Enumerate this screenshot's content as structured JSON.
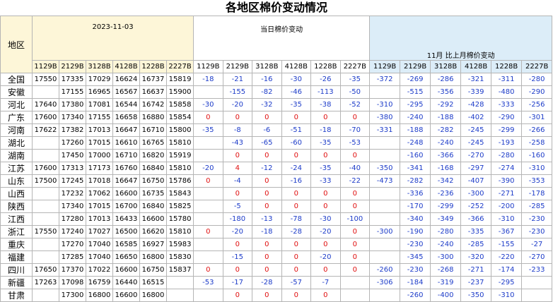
{
  "title": "各地区棉价变动情况",
  "header": {
    "region": "地区",
    "date": "2023-11-03",
    "daily": "当日棉价变动",
    "monthly": "11月 比上月棉价变动",
    "columns": [
      "1129B",
      "2129B",
      "3128B",
      "4128B",
      "1228B",
      "2227B"
    ]
  },
  "rows": [
    {
      "region": "全国",
      "prices": [
        17550,
        17335,
        17029,
        16624,
        16737,
        15819
      ],
      "daily": [
        -18,
        -21,
        -16,
        -30,
        -26,
        -35
      ],
      "monthly": [
        -372,
        -269,
        -286,
        -321,
        -311,
        -280
      ]
    },
    {
      "region": "安徽",
      "prices": [
        null,
        17155,
        16965,
        16567,
        16637,
        15900
      ],
      "daily": [
        null,
        -155,
        -82,
        -46,
        -113,
        -50
      ],
      "monthly": [
        null,
        -515,
        -356,
        -339,
        -480,
        -290
      ]
    },
    {
      "region": "河北",
      "prices": [
        17640,
        17380,
        17081,
        16544,
        16742,
        15858
      ],
      "daily": [
        -30,
        -20,
        -32,
        -35,
        -38,
        -52
      ],
      "monthly": [
        -310,
        -295,
        -292,
        -428,
        -333,
        -256
      ]
    },
    {
      "region": "广东",
      "prices": [
        17600,
        17340,
        17155,
        16658,
        16880,
        15854
      ],
      "daily": [
        0,
        0,
        0,
        0,
        0,
        0
      ],
      "monthly": [
        -380,
        -240,
        -188,
        -402,
        -290,
        -301
      ]
    },
    {
      "region": "河南",
      "prices": [
        17622,
        17382,
        17013,
        16647,
        16710,
        15800
      ],
      "daily": [
        -35,
        -8,
        -6,
        -51,
        -18,
        -70
      ],
      "monthly": [
        -331,
        -188,
        -282,
        -245,
        -299,
        -266
      ]
    },
    {
      "region": "湖北",
      "prices": [
        null,
        17260,
        17015,
        16610,
        16765,
        15810
      ],
      "daily": [
        null,
        -43,
        -65,
        -60,
        -35,
        -53
      ],
      "monthly": [
        null,
        -248,
        -240,
        -245,
        -193,
        -258
      ]
    },
    {
      "region": "湖南",
      "prices": [
        null,
        17450,
        17000,
        16710,
        16820,
        15919
      ],
      "daily": [
        null,
        0,
        0,
        0,
        0,
        0
      ],
      "monthly": [
        null,
        -160,
        -366,
        -270,
        -280,
        -160
      ]
    },
    {
      "region": "江苏",
      "prices": [
        17600,
        17313,
        17173,
        16760,
        16840,
        15810
      ],
      "daily": [
        -20,
        4,
        -12,
        -24,
        -35,
        -40
      ],
      "monthly": [
        -350,
        -341,
        -168,
        -297,
        -274,
        -310
      ]
    },
    {
      "region": "山东",
      "prices": [
        17500,
        17245,
        17018,
        16647,
        16750,
        15786
      ],
      "daily": [
        0,
        -4,
        0,
        -16,
        -33,
        -22
      ],
      "monthly": [
        -473,
        -282,
        -342,
        -407,
        -390,
        -353
      ]
    },
    {
      "region": "山西",
      "prices": [
        null,
        17232,
        17062,
        16600,
        16735,
        15843
      ],
      "daily": [
        null,
        0,
        0,
        0,
        0,
        0
      ],
      "monthly": [
        null,
        -336,
        -236,
        -300,
        -271,
        -178
      ]
    },
    {
      "region": "陕西",
      "prices": [
        null,
        17340,
        17015,
        16700,
        16840,
        15825
      ],
      "daily": [
        null,
        -5,
        0,
        0,
        0,
        0
      ],
      "monthly": [
        null,
        -170,
        -299,
        -252,
        -200,
        -285
      ]
    },
    {
      "region": "江西",
      "prices": [
        null,
        17280,
        17013,
        16433,
        16600,
        15780
      ],
      "daily": [
        null,
        -180,
        -13,
        -78,
        -30,
        -100
      ],
      "monthly": [
        null,
        -340,
        -349,
        -366,
        -310,
        -230
      ]
    },
    {
      "region": "浙江",
      "prices": [
        17550,
        17240,
        17027,
        16500,
        16620,
        15810
      ],
      "daily": [
        0,
        -20,
        -18,
        -28,
        -20,
        0
      ],
      "monthly": [
        -300,
        -190,
        -280,
        -335,
        -367,
        -230
      ]
    },
    {
      "region": "重庆",
      "prices": [
        null,
        17270,
        17040,
        16585,
        16927,
        15983
      ],
      "daily": [
        null,
        0,
        0,
        0,
        0,
        0
      ],
      "monthly": [
        null,
        -230,
        -240,
        -285,
        -155,
        -27
      ]
    },
    {
      "region": "福建",
      "prices": [
        null,
        17285,
        17040,
        16650,
        16800,
        15830
      ],
      "daily": [
        null,
        -15,
        0,
        0,
        -20,
        0
      ],
      "monthly": [
        null,
        -345,
        -300,
        -320,
        -220,
        -270
      ]
    },
    {
      "region": "四川",
      "prices": [
        17650,
        17370,
        17022,
        16600,
        16750,
        15837
      ],
      "daily": [
        0,
        0,
        0,
        0,
        0,
        0
      ],
      "monthly": [
        -260,
        -230,
        -268,
        -271,
        -174,
        -233
      ]
    },
    {
      "region": "新疆",
      "prices": [
        17263,
        17098,
        16759,
        16440,
        16515,
        null
      ],
      "daily": [
        -53,
        -17,
        -28,
        -57,
        -7,
        null
      ],
      "monthly": [
        -306,
        -184,
        -319,
        -237,
        -295,
        null
      ]
    },
    {
      "region": "甘肃",
      "prices": [
        null,
        17300,
        16800,
        16600,
        16800,
        null
      ],
      "daily": [
        null,
        0,
        0,
        0,
        0,
        null
      ],
      "monthly": [
        null,
        -260,
        -400,
        -350,
        -310,
        null
      ]
    }
  ]
}
